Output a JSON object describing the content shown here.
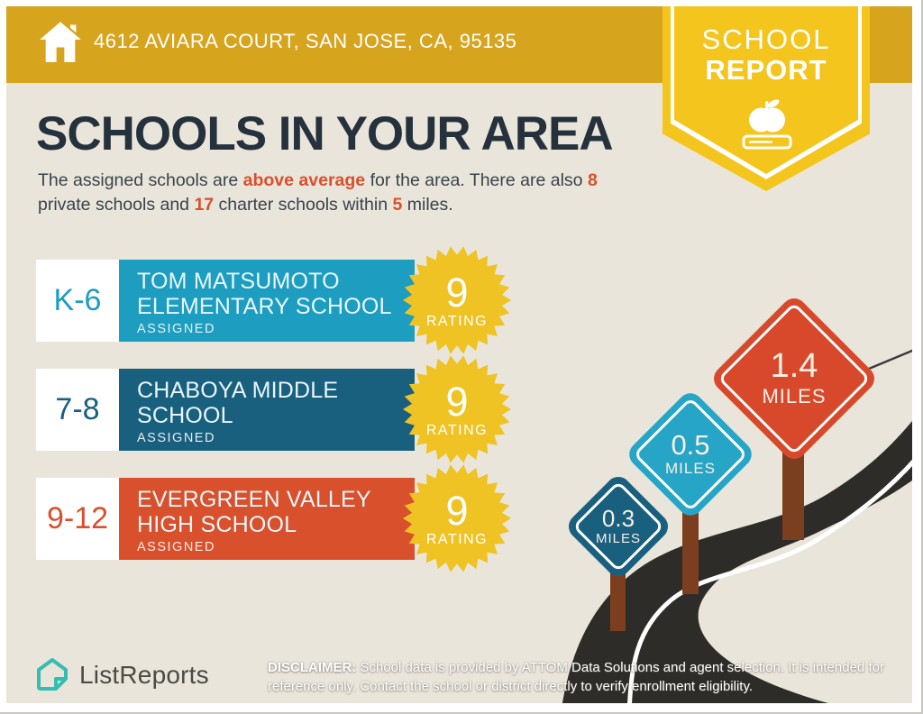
{
  "header": {
    "address": "4612 AVIARA COURT, SAN JOSE, CA, 95135"
  },
  "badge": {
    "line1": "SCHOOL",
    "line2": "REPORT"
  },
  "title": "SCHOOLS IN YOUR AREA",
  "intro": {
    "part1": "The assigned schools are ",
    "highlight1": "above average",
    "part2": " for the area. There are also ",
    "highlight2": "8",
    "part3": " private schools and ",
    "highlight3": "17",
    "part4": " charter schools within ",
    "highlight4": "5",
    "part5": " miles."
  },
  "schools": [
    {
      "grades": "K-6",
      "name": "TOM MATSUMOTO ELEMENTARY SCHOOL",
      "status": "ASSIGNED",
      "rating": "9",
      "rating_label": "RATING",
      "color": "#1D9DBF"
    },
    {
      "grades": "7-8",
      "name": "CHABOYA MIDDLE SCHOOL",
      "status": "ASSIGNED",
      "rating": "9",
      "rating_label": "RATING",
      "color": "#19607F"
    },
    {
      "grades": "9-12",
      "name": "EVERGREEN VALLEY HIGH SCHOOL",
      "status": "ASSIGNED",
      "rating": "9",
      "rating_label": "RATING",
      "color": "#D8502C"
    }
  ],
  "signs": [
    {
      "distance": "0.3",
      "unit": "MILES",
      "color": "#19607F"
    },
    {
      "distance": "0.5",
      "unit": "MILES",
      "color": "#27A5C6"
    },
    {
      "distance": "1.4",
      "unit": "MILES",
      "color": "#D8492B"
    }
  ],
  "footer": {
    "brand": "ListReports",
    "disclaimer_label": "DISCLAIMER:",
    "disclaimer_text": " School data is provided by ATTOM Data Solutions and agent selection. It is intended for reference only. Contact the school or district directly to verify enrollment eligibility."
  },
  "colors": {
    "gold": "#D7A41E",
    "badge_yellow": "#F3C51D",
    "background": "#E9E5DA",
    "navy": "#25313C",
    "highlight_red": "#D8502C",
    "starburst": "#EFC324",
    "road": "#2E2C29",
    "logo_teal": "#35BDB2"
  }
}
